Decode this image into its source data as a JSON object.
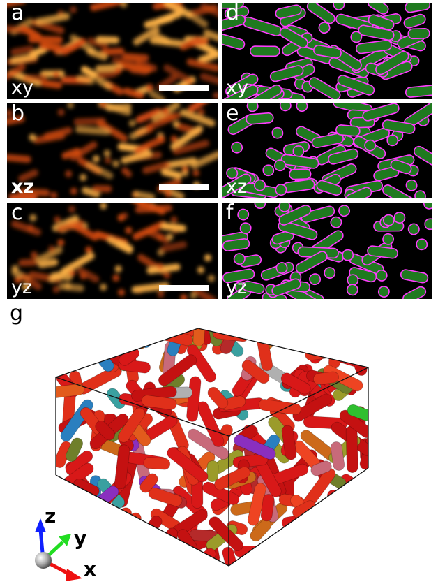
{
  "panels": [
    {
      "letter": "a",
      "plane": "xy",
      "kind": "raw"
    },
    {
      "letter": "b",
      "plane": "xz",
      "kind": "raw",
      "bold": true
    },
    {
      "letter": "c",
      "plane": "yz",
      "kind": "raw"
    },
    {
      "letter": "d",
      "plane": "xy",
      "kind": "seg"
    },
    {
      "letter": "e",
      "plane": "xz",
      "kind": "seg"
    },
    {
      "letter": "f",
      "plane": "yz",
      "kind": "seg"
    }
  ],
  "panel_g": {
    "letter": "g",
    "axes": {
      "z": "z",
      "y": "y",
      "x": "x"
    }
  },
  "colors": {
    "raw_glow": "#d24a12",
    "raw_core": "#ffb347",
    "seg_fill": "#1f7a1f",
    "seg_outline": "#ff3cff",
    "axis_z": "#1020ff",
    "axis_y": "#22dd22",
    "axis_x": "#ee1111"
  }
}
